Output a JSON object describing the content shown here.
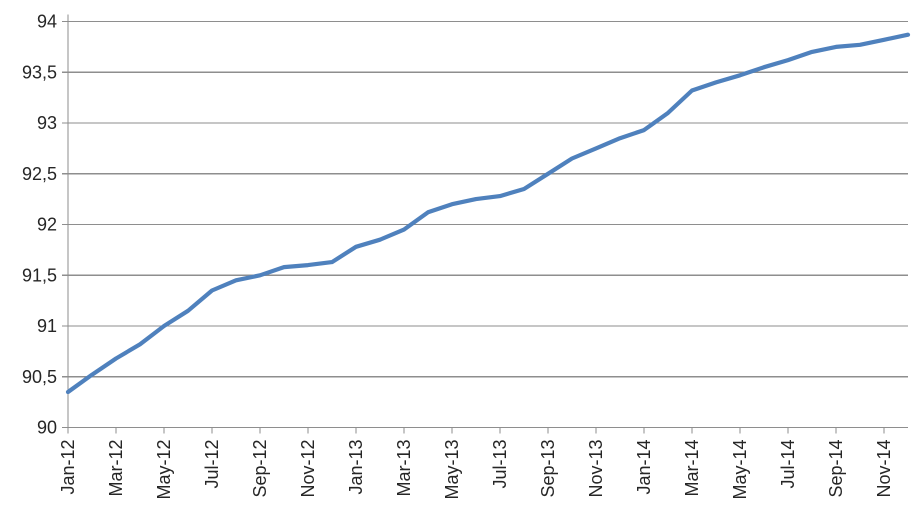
{
  "chart_data": {
    "type": "line",
    "title": "",
    "xlabel": "",
    "ylabel": "",
    "ylim": [
      90,
      94
    ],
    "grid": "horizontal",
    "legend_position": "none",
    "decimal_separator": ",",
    "categories": [
      "Jan-12",
      "Feb-12",
      "Mar-12",
      "Apr-12",
      "May-12",
      "Jun-12",
      "Jul-12",
      "Aug-12",
      "Sep-12",
      "Oct-12",
      "Nov-12",
      "Dec-12",
      "Jan-13",
      "Feb-13",
      "Mar-13",
      "Apr-13",
      "May-13",
      "Jun-13",
      "Jul-13",
      "Aug-13",
      "Sep-13",
      "Oct-13",
      "Nov-13",
      "Dec-13",
      "Jan-14",
      "Feb-14",
      "Mar-14",
      "Apr-14",
      "May-14",
      "Jun-14",
      "Jul-14",
      "Aug-14",
      "Sep-14",
      "Oct-14",
      "Nov-14",
      "Dec-14"
    ],
    "values": [
      90.35,
      90.52,
      90.68,
      90.82,
      91.0,
      91.15,
      91.35,
      91.45,
      91.5,
      91.58,
      91.6,
      91.63,
      91.78,
      91.85,
      91.95,
      92.12,
      92.2,
      92.25,
      92.28,
      92.35,
      92.5,
      92.65,
      92.75,
      92.85,
      92.93,
      93.1,
      93.32,
      93.4,
      93.47,
      93.55,
      93.62,
      93.7,
      93.75,
      93.77,
      93.82,
      93.87
    ],
    "y_tick_labels": [
      "94",
      "93,5",
      "93",
      "92,5",
      "92",
      "91,5",
      "91",
      "90,5",
      "90"
    ],
    "y_tick_values": [
      94,
      93.5,
      93,
      92.5,
      92,
      91.5,
      91,
      90.5,
      90
    ],
    "x_tick_labels": [
      "Jan-12",
      "Mar-12",
      "May-12",
      "Jul-12",
      "Sep-12",
      "Nov-12",
      "Jan-13",
      "Mar-13",
      "May-13",
      "Jul-13",
      "Sep-13",
      "Nov-13",
      "Jan-14",
      "Mar-14",
      "May-14",
      "Jul-14",
      "Sep-14",
      "Nov-14"
    ],
    "x_tick_every": 2
  },
  "colors": {
    "series_line": "#4f81bd",
    "gridline": "#8e8e8e",
    "axis_line": "#8e8e8e",
    "tick_label": "#262626",
    "background": "#ffffff"
  }
}
